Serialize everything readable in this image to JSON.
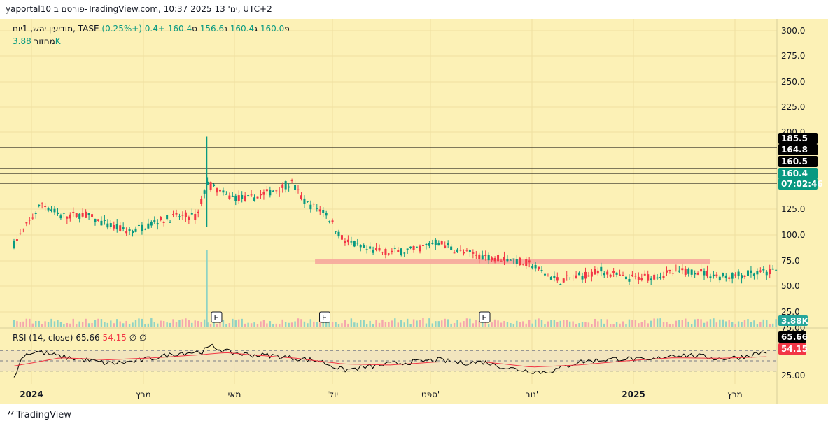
{
  "header": {
    "title": "yaportal10 פורסם ב-TradingView.com, 10:37 2025 ינו' 13, UTC+2"
  },
  "legend": {
    "symbol": "מודיעין יהש, 1יום, TASE",
    "open_label": "פ",
    "open": "160.0",
    "high_label": "ג",
    "high": "160.4",
    "low_label": "נ",
    "low": "156.6",
    "close_label": "ס",
    "close": "160.4",
    "change": "+0.4 (+0.25%)",
    "volume_label": "מחזור",
    "volume": "3.88K",
    "rsi_label": "RSI (14, close)",
    "rsi": "65.66",
    "rsi_ma": "54.15",
    "rsi_extra1": "∅",
    "rsi_extra2": "∅"
  },
  "footer": {
    "brand": "TradingView"
  },
  "colors": {
    "background": "#fcf1b6",
    "up": "#089981",
    "down": "#f23645",
    "zone": "#f6a79c",
    "rsi_line": "#000000",
    "rsi_ma": "#f23645"
  },
  "chart_data": {
    "type": "candlestick",
    "symbol": "מודיעין יהש",
    "exchange": "TASE",
    "interval": "1יום",
    "y_ticks": [
      "300.0",
      "275.0",
      "250.0",
      "225.0",
      "200.0",
      "125.0",
      "100.0",
      "75.0",
      "50.0",
      "25.0"
    ],
    "x_labels": [
      "2024",
      "מרץ",
      "מאי",
      "'יול",
      "ספט'",
      "נוב'",
      "2025",
      "מרץ"
    ],
    "price_labels": [
      {
        "text": "185.5",
        "bg": "#000000",
        "value": 185.5
      },
      {
        "text": "164.8",
        "bg": "#000000",
        "value": 164.8
      },
      {
        "text": "160.5",
        "bg": "#000000",
        "value": 160.5
      },
      {
        "text": "160.4",
        "bg": "#089981",
        "value": 160.4
      },
      {
        "text": "07:02:46",
        "bg": "#089981",
        "value": 160.4
      }
    ],
    "horizontal_lines": [
      185.5,
      164.8,
      160.5,
      160.4
    ],
    "zone": {
      "low": 158.5,
      "high": 163.5,
      "from_month": 6.4,
      "to_month": 14.8
    },
    "price_knots": [
      [
        0,
        178
      ],
      [
        0.3,
        198
      ],
      [
        0.6,
        218
      ],
      [
        1,
        205
      ],
      [
        1.5,
        207
      ],
      [
        2,
        196
      ],
      [
        2.5,
        190
      ],
      [
        3,
        200
      ],
      [
        3.5,
        205
      ],
      [
        3.9,
        205
      ],
      [
        4.1,
        238
      ],
      [
        4.5,
        225
      ],
      [
        5,
        222
      ],
      [
        5.5,
        230
      ],
      [
        5.9,
        238
      ],
      [
        6.2,
        218
      ],
      [
        6.6,
        210
      ],
      [
        7,
        182
      ],
      [
        7.5,
        172
      ],
      [
        8,
        170
      ],
      [
        8.5,
        172
      ],
      [
        9,
        180
      ],
      [
        9.5,
        170
      ],
      [
        10,
        166
      ],
      [
        10.5,
        164
      ],
      [
        11,
        158
      ],
      [
        11.3,
        148
      ],
      [
        11.6,
        142
      ],
      [
        12,
        146
      ],
      [
        12.5,
        152
      ],
      [
        13,
        144
      ],
      [
        13.5,
        146
      ],
      [
        14,
        150
      ],
      [
        14.5,
        152
      ],
      [
        15,
        146
      ],
      [
        15.5,
        148
      ],
      [
        16,
        150
      ],
      [
        16.2,
        152
      ]
    ],
    "volume_label": "3.88K",
    "volume_spike": {
      "month": 4.1,
      "value": 85
    },
    "rsi": {
      "length": 14,
      "source": "close",
      "value": 65.66,
      "ma_value": 54.15,
      "levels": [
        70,
        50,
        30
      ],
      "y_ticks": [
        "75.00",
        "25.00"
      ],
      "current_labels": [
        {
          "text": "65.66",
          "bg": "#000000"
        },
        {
          "text": "54.15",
          "bg": "#f23645"
        }
      ],
      "knots": [
        [
          0,
          18
        ],
        [
          0.2,
          62
        ],
        [
          0.5,
          68
        ],
        [
          1,
          58
        ],
        [
          1.5,
          52
        ],
        [
          2,
          45
        ],
        [
          2.5,
          48
        ],
        [
          3,
          56
        ],
        [
          3.5,
          65
        ],
        [
          4,
          68
        ],
        [
          4.2,
          78
        ],
        [
          4.6,
          66
        ],
        [
          5,
          62
        ],
        [
          5.5,
          60
        ],
        [
          6,
          55
        ],
        [
          6.5,
          50
        ],
        [
          7,
          32
        ],
        [
          7.5,
          38
        ],
        [
          8,
          44
        ],
        [
          8.5,
          48
        ],
        [
          9,
          52
        ],
        [
          9.5,
          46
        ],
        [
          10,
          48
        ],
        [
          10.5,
          36
        ],
        [
          11,
          30
        ],
        [
          11.3,
          28
        ],
        [
          11.6,
          35
        ],
        [
          12,
          48
        ],
        [
          12.5,
          52
        ],
        [
          13,
          55
        ],
        [
          13.5,
          50
        ],
        [
          14,
          62
        ],
        [
          14.5,
          60
        ],
        [
          15,
          54
        ],
        [
          15.5,
          58
        ],
        [
          16,
          68
        ]
      ],
      "ma_knots": [
        [
          0,
          40
        ],
        [
          1,
          56
        ],
        [
          2,
          52
        ],
        [
          3,
          56
        ],
        [
          4,
          62
        ],
        [
          4.5,
          66
        ],
        [
          5,
          62
        ],
        [
          6,
          55
        ],
        [
          7,
          44
        ],
        [
          8,
          42
        ],
        [
          9,
          48
        ],
        [
          10,
          48
        ],
        [
          11,
          38
        ],
        [
          12,
          42
        ],
        [
          13,
          50
        ],
        [
          14,
          56
        ],
        [
          15,
          55
        ],
        [
          16,
          58
        ]
      ]
    },
    "events": [
      {
        "label": "E",
        "month": 4.3
      },
      {
        "label": "E",
        "month": 6.6
      },
      {
        "label": "E",
        "month": 10.0
      }
    ]
  }
}
